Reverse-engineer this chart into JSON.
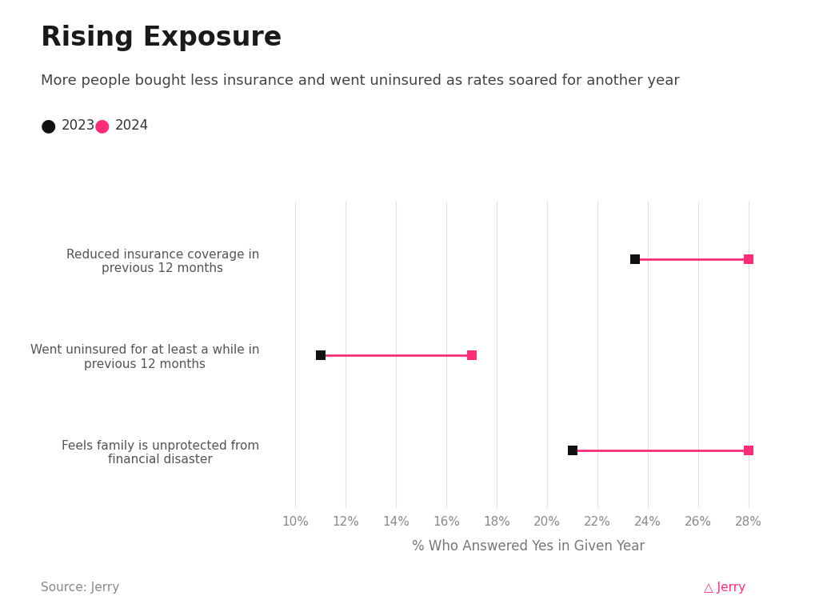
{
  "title": "Rising Exposure",
  "subtitle": "More people bought less insurance and went uninsured as rates soared for another year",
  "categories": [
    "Reduced insurance coverage in\nprevious 12 months",
    "Went uninsured for at least a while in\nprevious 12 months",
    "Feels family is unprotected from\nfinancial disaster"
  ],
  "values_2023": [
    23.5,
    11.0,
    21.0
  ],
  "values_2024": [
    28.0,
    17.0,
    28.0
  ],
  "color_2023": "#111111",
  "color_2024": "#FF2D78",
  "line_color": "#FF2D78",
  "xlabel": "% Who Answered Yes in Given Year",
  "xlim": [
    0.09,
    0.295
  ],
  "xticks": [
    0.1,
    0.12,
    0.14,
    0.16,
    0.18,
    0.2,
    0.22,
    0.24,
    0.26,
    0.28
  ],
  "xtick_labels": [
    "10%",
    "12%",
    "14%",
    "16%",
    "18%",
    "20%",
    "22%",
    "24%",
    "26%",
    "28%"
  ],
  "source_text": "Source: Jerry",
  "legend_2023": "2023",
  "legend_2024": "2024",
  "background_color": "#ffffff",
  "grid_color": "#e0e0e0",
  "marker_size_2023": 8,
  "marker_size_2024": 8,
  "title_fontsize": 24,
  "subtitle_fontsize": 13,
  "label_fontsize": 11,
  "tick_fontsize": 11,
  "xlabel_fontsize": 12,
  "source_fontsize": 11
}
